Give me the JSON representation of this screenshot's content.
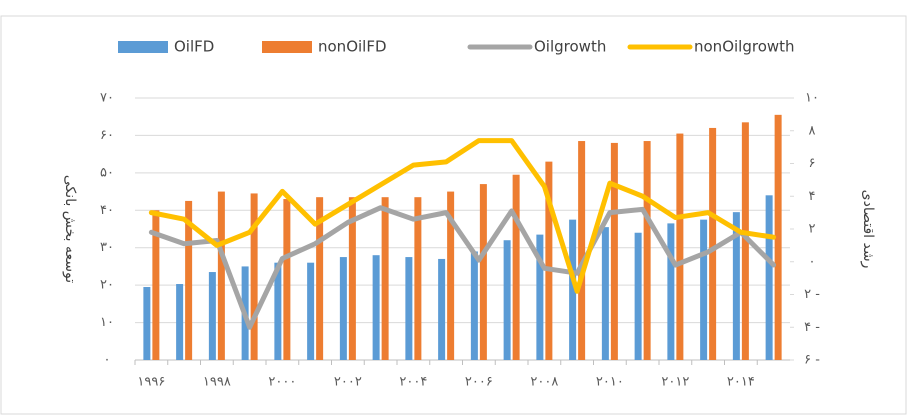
{
  "chart_data": {
    "type": "bar-line",
    "y_label": "توسعه بخش بانکی",
    "y2_label": "رشد اقتصادی",
    "categories": [
      "۱۹۹۶",
      null,
      "۱۹۹۸",
      null,
      "۲۰۰۰",
      null,
      "۲۰۰۲",
      null,
      "۲۰۰۴",
      null,
      "۲۰۰۶",
      null,
      "۲۰۰۸",
      null,
      "۲۰۱۰",
      null,
      "۲۰۱۲",
      null,
      "۲۰۱۴",
      null
    ],
    "series": [
      {
        "name": "OilFD",
        "type": "bar",
        "color": "#5b9bd5",
        "values": [
          19.5,
          20.3,
          23.5,
          25,
          26,
          26,
          27.5,
          28,
          27.5,
          27,
          29,
          32,
          33.5,
          37.5,
          35.5,
          34,
          36.5,
          37.5,
          39.5,
          44
        ]
      },
      {
        "name": "nonOilFD",
        "type": "bar",
        "color": "#ed7d31",
        "values": [
          40,
          42.5,
          45,
          44.5,
          43,
          43.5,
          43.5,
          43.5,
          43.5,
          45,
          47,
          49.5,
          53,
          58.5,
          58,
          58.5,
          60.5,
          62,
          63.5,
          65.5
        ]
      },
      {
        "name": "Oilgrowth",
        "type": "line",
        "axis": "y2",
        "color": "#a5a5a5",
        "values": [
          1.8,
          1.1,
          1.3,
          -4,
          0.2,
          1.1,
          2.4,
          3.3,
          2.6,
          3,
          0.1,
          3.1,
          -0.4,
          -0.7,
          3,
          3.2,
          -0.2,
          0.6,
          1.8,
          -0.2
        ]
      },
      {
        "name": "nonOilgrowth",
        "type": "line",
        "axis": "y2",
        "color": "#ffc000",
        "values": [
          3,
          2.6,
          1,
          1.8,
          4.3,
          2.3,
          3.5,
          4.7,
          5.9,
          6.1,
          7.4,
          7.4,
          4.6,
          -1.8,
          4.8,
          4,
          2.7,
          3,
          1.8,
          1.5
        ]
      }
    ],
    "ylim": [
      0,
      70
    ],
    "yticks": [
      {
        "value": 0,
        "label": "۰"
      },
      {
        "value": 10,
        "label": "۱۰"
      },
      {
        "value": 20,
        "label": "۲۰"
      },
      {
        "value": 30,
        "label": "۳۰"
      },
      {
        "value": 40,
        "label": "۴۰"
      },
      {
        "value": 50,
        "label": "۵۰"
      },
      {
        "value": 60,
        "label": "۶۰"
      },
      {
        "value": 70,
        "label": "۷۰"
      }
    ],
    "y2lim": [
      -6,
      10
    ],
    "y2ticks": [
      {
        "value": -6,
        "label": "۶ -"
      },
      {
        "value": -4,
        "label": "۴ -"
      },
      {
        "value": -2,
        "label": "۲ -"
      },
      {
        "value": 0,
        "label": "۰"
      },
      {
        "value": 2,
        "label": "۲"
      },
      {
        "value": 4,
        "label": "۴"
      },
      {
        "value": 6,
        "label": "۶"
      },
      {
        "value": 8,
        "label": "۸"
      },
      {
        "value": 10,
        "label": "۱۰"
      }
    ],
    "grid": true
  }
}
